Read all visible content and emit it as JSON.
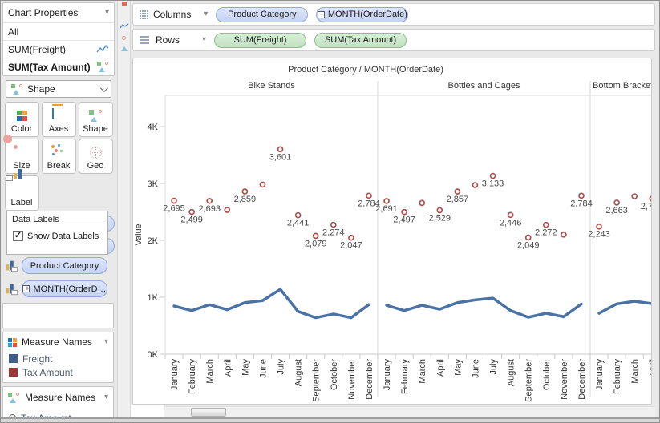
{
  "left_panel": {
    "chart_properties": {
      "title": "Chart Properties",
      "items": [
        {
          "label": "All"
        },
        {
          "label": "SUM(Freight)",
          "icon": "line-chart-icon"
        },
        {
          "label": "SUM(Tax Amount)",
          "icon": "shape-marks-icon",
          "bold": true
        }
      ]
    },
    "shape_dropdown": {
      "value": "Shape"
    },
    "buttons": [
      {
        "label": "Color"
      },
      {
        "label": "Axes"
      },
      {
        "label": "Shape"
      },
      {
        "label": "Size"
      },
      {
        "label": "Break"
      },
      {
        "label": "Geo"
      },
      {
        "label": "Label"
      }
    ],
    "data_labels_popup": {
      "title": "Data Labels",
      "checkbox_label": "Show Data Labels",
      "checked": true
    },
    "marks_fields": [
      {
        "label": "Product Category"
      },
      {
        "label": "MONTH(OrderD…",
        "expandable": true
      }
    ],
    "measure_names_color_legend": {
      "title": "Measure Names",
      "entries": [
        {
          "label": "Freight",
          "color": "#3f5e8c"
        },
        {
          "label": "Tax Amount",
          "color": "#9c3836"
        }
      ]
    },
    "measure_names_shape_legend": {
      "title": "Measure Names",
      "entries": [
        {
          "label": "Tax Amount",
          "shape": "circle"
        }
      ]
    }
  },
  "shelves": {
    "columns": {
      "label": "Columns",
      "pills": [
        {
          "label": "Product Category",
          "type": "dimension"
        },
        {
          "label": "MONTH(OrderDate)",
          "type": "dimension",
          "expandable": true
        }
      ]
    },
    "rows": {
      "label": "Rows",
      "pills": [
        {
          "label": "SUM(Freight)",
          "type": "measure"
        },
        {
          "label": "SUM(Tax Amount)",
          "type": "measure"
        }
      ]
    }
  },
  "chart_data": {
    "type": "line+scatter small multiples",
    "title": "Product Category / MONTH(OrderDate)",
    "ylabel": "Value",
    "grid": false,
    "yticks": [
      {
        "label": "0K",
        "value": 0
      },
      {
        "label": "1K",
        "value": 1000
      },
      {
        "label": "2K",
        "value": 2000
      },
      {
        "label": "3K",
        "value": 3000
      },
      {
        "label": "4K",
        "value": 4000
      }
    ],
    "months": [
      "January",
      "February",
      "March",
      "April",
      "May",
      "June",
      "July",
      "August",
      "September",
      "October",
      "November",
      "December"
    ],
    "series_meta": [
      {
        "name": "Freight",
        "type": "line",
        "color": "#4a72a4"
      },
      {
        "name": "Tax Amount",
        "type": "scatter",
        "color": "#b0504d"
      }
    ],
    "panels": [
      {
        "category": "Bike Stands",
        "months_shown": 12,
        "tax_amount": [
          2695,
          2499,
          2693,
          2535,
          2859,
          2980,
          3601,
          2441,
          2079,
          2274,
          2047,
          2784
        ],
        "tax_amount_labels": [
          "2,695",
          "2,499",
          "2,693",
          "",
          "2,859",
          "",
          "3,601",
          "2,441",
          "2,079",
          "2,274",
          "2,047",
          "2,784"
        ],
        "freight": [
          845,
          765,
          868,
          780,
          905,
          940,
          1140,
          750,
          640,
          705,
          640,
          870
        ]
      },
      {
        "category": "Bottles and Cages",
        "months_shown": 12,
        "tax_amount": [
          2691,
          2497,
          2657,
          2529,
          2857,
          2971,
          3133,
          2446,
          2049,
          2272,
          2102,
          2784
        ],
        "tax_amount_labels": [
          "2,691",
          "2,497",
          "",
          "2,529",
          "2,857",
          "",
          "3,133",
          "2,446",
          "2,049",
          "2,272",
          "",
          "2,784"
        ],
        "freight": [
          858,
          765,
          858,
          789,
          905,
          953,
          985,
          765,
          648,
          718,
          657,
          880
        ]
      },
      {
        "category": "Bottom Brackets",
        "months_shown": 4,
        "partially_visible": true,
        "tax_amount": [
          2243,
          2663,
          2774,
          2732
        ],
        "tax_amount_labels": [
          "2,243",
          "2,663",
          "",
          "2,7"
        ],
        "freight": [
          718,
          883,
          929,
          887
        ]
      }
    ]
  }
}
